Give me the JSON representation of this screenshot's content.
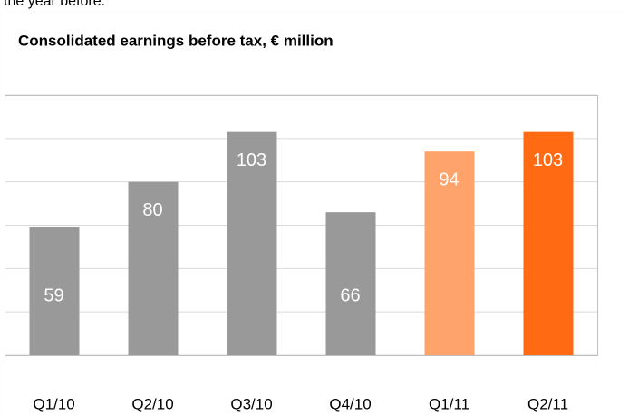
{
  "page_text": "the year before.",
  "chart_data": {
    "type": "bar",
    "title": "Consolidated earnings before tax, € million",
    "categories": [
      "Q1/10",
      "Q2/10",
      "Q3/10",
      "Q4/10",
      "Q1/11",
      "Q2/11"
    ],
    "values": [
      59,
      80,
      103,
      66,
      94,
      103
    ],
    "colors": [
      "#999999",
      "#999999",
      "#999999",
      "#999999",
      "#ffa36c",
      "#ff6a13"
    ],
    "ylim": [
      0,
      120
    ],
    "yticks": [
      0,
      20,
      40,
      60,
      80,
      100,
      120
    ],
    "grid": true
  }
}
